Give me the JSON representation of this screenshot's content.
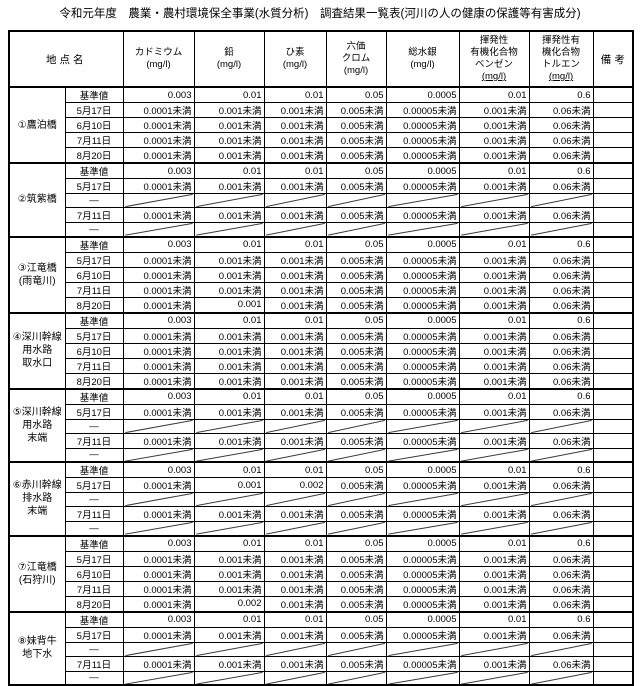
{
  "title": "令和元年度　農業・農村環境保全事業(水質分析)　調査結果一覧表(河川の人の健康の保護等有害成分)",
  "table": {
    "corner_header": "地点名",
    "remarks_header": "備 考",
    "columns": [
      {
        "id": "cadmium",
        "lines": "カドミウム",
        "unit": "(mg/l)",
        "underline": false
      },
      {
        "id": "lead",
        "lines": "鉛",
        "unit": "(mg/l)",
        "underline": false
      },
      {
        "id": "arsenic",
        "lines": "ひ素",
        "unit": "(mg/l)",
        "underline": false
      },
      {
        "id": "hexavalent-chromium",
        "lines": "六価\nクロム",
        "unit": "(mg/l)",
        "underline": false
      },
      {
        "id": "total-mercury",
        "lines": "総水銀",
        "unit": "(mg/l)",
        "underline": false
      },
      {
        "id": "voc-benzene",
        "lines": "揮発性\n有機化合物\nベンゼン",
        "unit": "(mg/l)",
        "underline": true
      },
      {
        "id": "voc-toluene",
        "lines": "揮発性有\n機化合物\nトルエン",
        "unit": "(mg/l)",
        "underline": true
      }
    ],
    "standard_label": "基準値",
    "standard_values": [
      "0.003",
      "0.01",
      "0.01",
      "0.05",
      "0.0005",
      "0.01",
      "0.6"
    ],
    "no_data_label": "―",
    "groups": [
      {
        "location": "①鷹泊橋",
        "rows": [
          {
            "label": "5月17日",
            "values": [
              "0.0001未満",
              "0.001未満",
              "0.001未満",
              "0.005未満",
              "0.00005未満",
              "0.001未満",
              "0.06未満"
            ]
          },
          {
            "label": "6月10日",
            "values": [
              "0.0001未満",
              "0.001未満",
              "0.001未満",
              "0.005未満",
              "0.00005未満",
              "0.001未満",
              "0.06未満"
            ]
          },
          {
            "label": "7月11日",
            "values": [
              "0.0001未満",
              "0.001未満",
              "0.001未満",
              "0.005未満",
              "0.00005未満",
              "0.001未満",
              "0.06未満"
            ]
          },
          {
            "label": "8月20日",
            "values": [
              "0.0001未満",
              "0.001未満",
              "0.001未満",
              "0.005未満",
              "0.00005未満",
              "0.001未満",
              "0.06未満"
            ]
          }
        ]
      },
      {
        "location": "②筑紫橋",
        "rows": [
          {
            "label": "5月17日",
            "values": [
              "0.0001未満",
              "0.001未満",
              "0.001未満",
              "0.005未満",
              "0.00005未満",
              "0.001未満",
              "0.06未満"
            ]
          },
          {
            "label": "―",
            "diagonal": true
          },
          {
            "label": "7月11日",
            "values": [
              "0.0001未満",
              "0.001未満",
              "0.001未満",
              "0.005未満",
              "0.00005未満",
              "0.001未満",
              "0.06未満"
            ]
          },
          {
            "label": "―",
            "diagonal": true
          }
        ]
      },
      {
        "location": "③江竜橋\n(雨竜川)",
        "rows": [
          {
            "label": "5月17日",
            "values": [
              "0.0001未満",
              "0.001未満",
              "0.001未満",
              "0.005未満",
              "0.00005未満",
              "0.001未満",
              "0.06未満"
            ]
          },
          {
            "label": "6月10日",
            "values": [
              "0.0001未満",
              "0.001未満",
              "0.001未満",
              "0.005未満",
              "0.00005未満",
              "0.001未満",
              "0.06未満"
            ]
          },
          {
            "label": "7月11日",
            "values": [
              "0.0001未満",
              "0.001未満",
              "0.001未満",
              "0.005未満",
              "0.00005未満",
              "0.001未満",
              "0.06未満"
            ]
          },
          {
            "label": "8月20日",
            "values": [
              "0.0001未満",
              "0.001",
              "0.001未満",
              "0.005未満",
              "0.00005未満",
              "0.001未満",
              "0.06未満"
            ]
          }
        ]
      },
      {
        "location": "④深川幹線\n用水路\n取水口",
        "rows": [
          {
            "label": "5月17日",
            "values": [
              "0.0001未満",
              "0.001未満",
              "0.001未満",
              "0.005未満",
              "0.00005未満",
              "0.001未満",
              "0.06未満"
            ]
          },
          {
            "label": "6月10日",
            "values": [
              "0.0001未満",
              "0.001未満",
              "0.001未満",
              "0.005未満",
              "0.00005未満",
              "0.001未満",
              "0.06未満"
            ]
          },
          {
            "label": "7月11日",
            "values": [
              "0.0001未満",
              "0.001未満",
              "0.001未満",
              "0.005未満",
              "0.00005未満",
              "0.001未満",
              "0.06未満"
            ]
          },
          {
            "label": "8月20日",
            "values": [
              "0.0001未満",
              "0.001未満",
              "0.001未満",
              "0.005未満",
              "0.00005未満",
              "0.001未満",
              "0.06未満"
            ]
          }
        ]
      },
      {
        "location": "⑤深川幹線\n用水路\n末端",
        "rows": [
          {
            "label": "5月17日",
            "values": [
              "0.0001未満",
              "0.001未満",
              "0.001未満",
              "0.005未満",
              "0.00005未満",
              "0.001未満",
              "0.06未満"
            ]
          },
          {
            "label": "―",
            "diagonal": true
          },
          {
            "label": "7月11日",
            "values": [
              "0.0001未満",
              "0.001未満",
              "0.001未満",
              "0.005未満",
              "0.00005未満",
              "0.001未満",
              "0.06未満"
            ]
          },
          {
            "label": "―",
            "diagonal": true
          }
        ]
      },
      {
        "location": "⑥赤川幹線\n排水路\n末端",
        "rows": [
          {
            "label": "5月17日",
            "values": [
              "0.0001未満",
              "0.001",
              "0.002",
              "0.005未満",
              "0.00005未満",
              "0.001未満",
              "0.06未満"
            ]
          },
          {
            "label": "―",
            "diagonal": true
          },
          {
            "label": "7月11日",
            "values": [
              "0.0001未満",
              "0.001未満",
              "0.001未満",
              "0.005未満",
              "0.00005未満",
              "0.001未満",
              "0.06未満"
            ]
          },
          {
            "label": "―",
            "diagonal": true
          }
        ]
      },
      {
        "location": "⑦江竜橋\n(石狩川)",
        "rows": [
          {
            "label": "5月17日",
            "values": [
              "0.0001未満",
              "0.001未満",
              "0.001未満",
              "0.005未満",
              "0.00005未満",
              "0.001未満",
              "0.06未満"
            ]
          },
          {
            "label": "6月10日",
            "values": [
              "0.0001未満",
              "0.001未満",
              "0.001未満",
              "0.005未満",
              "0.00005未満",
              "0.001未満",
              "0.06未満"
            ]
          },
          {
            "label": "7月11日",
            "values": [
              "0.0001未満",
              "0.001未満",
              "0.001未満",
              "0.005未満",
              "0.00005未満",
              "0.001未満",
              "0.06未満"
            ]
          },
          {
            "label": "8月20日",
            "values": [
              "0.0001未満",
              "0.002",
              "0.001未満",
              "0.005未満",
              "0.00005未満",
              "0.001未満",
              "0.06未満"
            ]
          }
        ]
      },
      {
        "location": "⑧妹背牛\n地下水",
        "rows": [
          {
            "label": "5月17日",
            "values": [
              "0.0001未満",
              "0.001未満",
              "0.001未満",
              "0.005未満",
              "0.00005未満",
              "0.001未満",
              "0.06未満"
            ]
          },
          {
            "label": "―",
            "diagonal": true
          },
          {
            "label": "7月11日",
            "values": [
              "0.0001未満",
              "0.001未満",
              "0.001未満",
              "0.005未満",
              "0.00005未満",
              "0.001未満",
              "0.06未満"
            ]
          },
          {
            "label": "―",
            "diagonal": true
          }
        ]
      }
    ]
  }
}
